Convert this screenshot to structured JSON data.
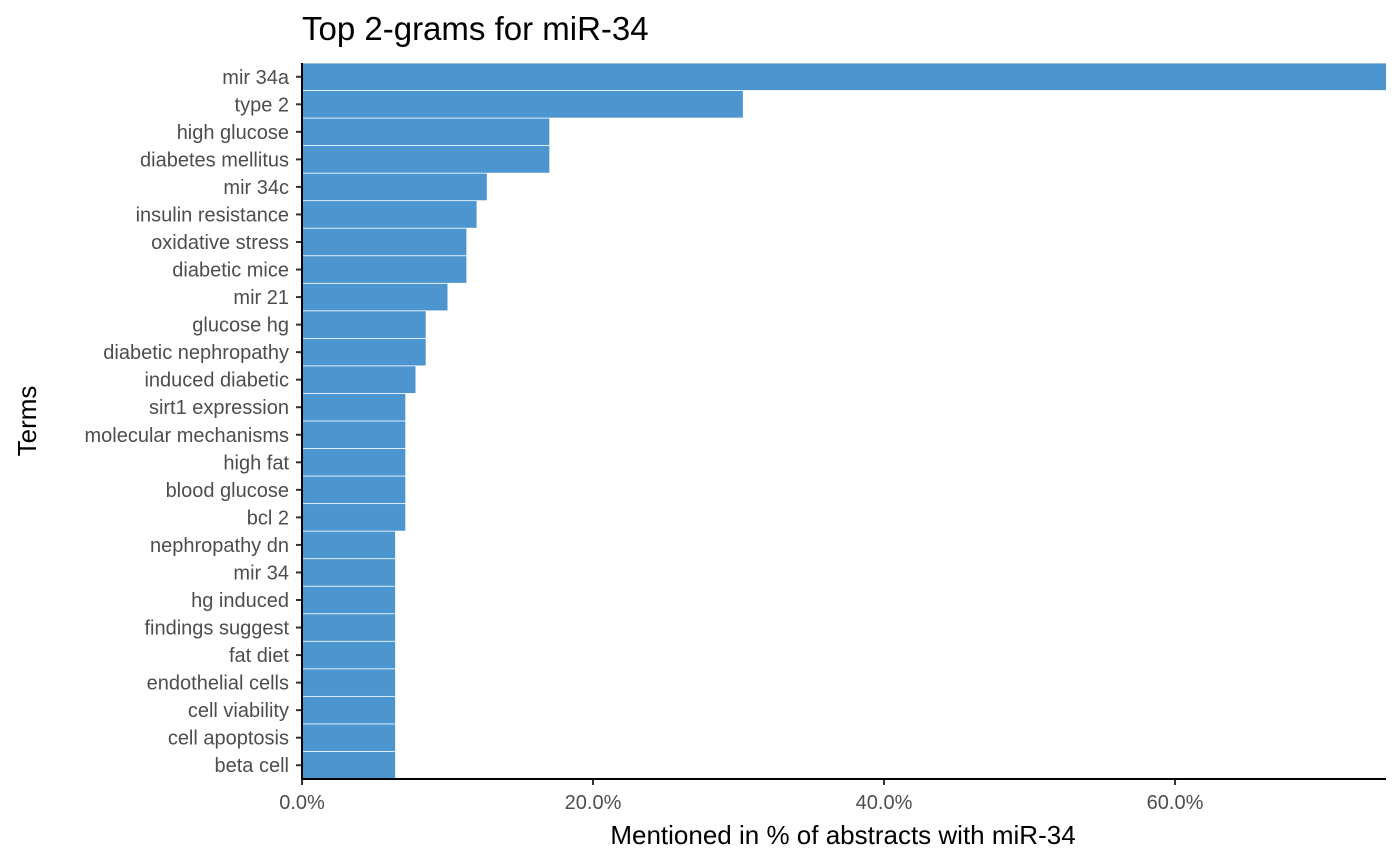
{
  "chart_data": {
    "type": "bar",
    "orientation": "horizontal",
    "title": "Top 2-grams for miR-34",
    "xlabel": "Mentioned in % of abstracts with miR-34",
    "ylabel": "Terms",
    "bar_color": "#4d95cf",
    "xlim": [
      0,
      74.5
    ],
    "xticks": [
      0,
      20,
      40,
      60
    ],
    "xtick_labels": [
      "0.0%",
      "20.0%",
      "40.0%",
      "60.0%"
    ],
    "grid": false,
    "legend": "none",
    "categories": [
      "mir 34a",
      "type 2",
      "high glucose",
      "diabetes mellitus",
      "mir 34c",
      "insulin resistance",
      "oxidative stress",
      "diabetic mice",
      "mir 21",
      "glucose hg",
      "diabetic nephropathy",
      "induced diabetic",
      "sirt1 expression",
      "molecular mechanisms",
      "high fat",
      "blood glucose",
      "bcl 2",
      "nephropathy dn",
      "mir 34",
      "hg induced",
      "findings suggest",
      "fat diet",
      "endothelial cells",
      "cell viability",
      "cell apoptosis",
      "beta cell"
    ],
    "values": [
      74.5,
      30.3,
      17.0,
      17.0,
      12.7,
      12.0,
      11.3,
      11.3,
      10.0,
      8.5,
      8.5,
      7.8,
      7.1,
      7.1,
      7.1,
      7.1,
      7.1,
      6.4,
      6.4,
      6.4,
      6.4,
      6.4,
      6.4,
      6.4,
      6.4,
      6.4
    ]
  }
}
